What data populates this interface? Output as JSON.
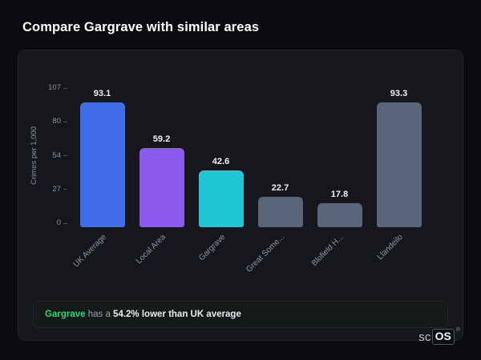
{
  "page": {
    "title": "Compare Gargrave with similar areas"
  },
  "chart_data": {
    "type": "bar",
    "categories": [
      "UK Average",
      "Local Area",
      "Gargrave",
      "Great Some...",
      "Blofield H...",
      "Llandeilo"
    ],
    "values": [
      93.1,
      59.2,
      42.6,
      22.7,
      17.8,
      93.3
    ],
    "value_labels": [
      "93.1",
      "59.2",
      "42.6",
      "22.7",
      "17.8",
      "93.3"
    ],
    "bar_colors": [
      "#3f6ee8",
      "#8a5bee",
      "#20c5d6",
      "#586478",
      "#586478",
      "#586478"
    ],
    "title": "",
    "xlabel": "",
    "ylabel": "Crimes per 1,000",
    "yticks": [
      "107",
      "80",
      "54",
      "27",
      "0"
    ],
    "ylim": [
      0,
      107
    ],
    "grid": false,
    "legend": false
  },
  "note": {
    "area": "Gargrave",
    "connector": " has a ",
    "stat": "54.2% lower than UK average"
  },
  "watermark": {
    "prefix": "sc",
    "boxed": "OS",
    "registered": "®"
  }
}
